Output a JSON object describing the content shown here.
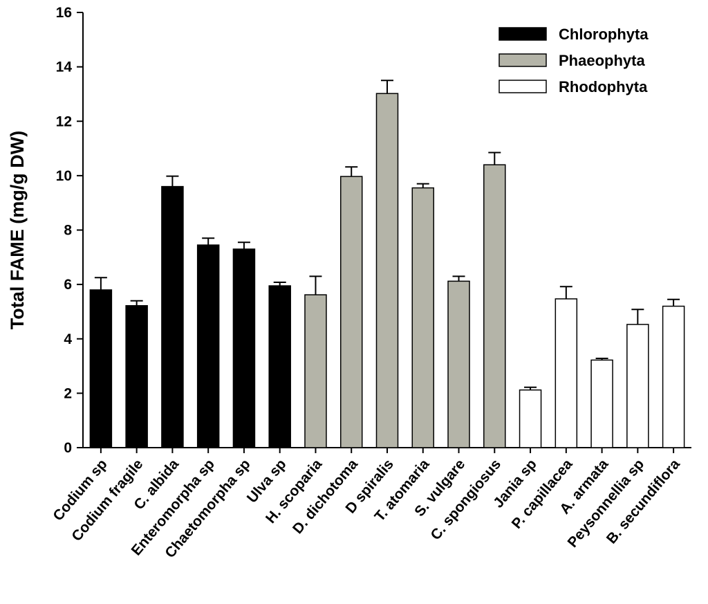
{
  "chart_data": {
    "type": "bar",
    "title": "",
    "xlabel": "",
    "ylabel": "Total FAME (mg/g DW)",
    "ylim": [
      0,
      16
    ],
    "yticks": [
      0,
      2,
      4,
      6,
      8,
      10,
      12,
      14,
      16
    ],
    "categories": [
      "Codium sp",
      "Codium fragile",
      "C. albida",
      "Enteromorpha sp",
      "Chaetomorpha sp",
      "Ulva sp",
      "H. scoparia",
      "D. dichotoma",
      "D spiralis",
      "T. atomaria",
      "S. vulgare",
      "C. spongiosus",
      "Jania sp",
      "P. capillacea",
      "A. armata",
      "Peysonnellia sp",
      "B. secundiflora"
    ],
    "values": [
      5.8,
      5.22,
      9.6,
      7.45,
      7.3,
      5.95,
      5.62,
      9.97,
      13.02,
      9.55,
      6.12,
      10.4,
      2.12,
      5.47,
      3.22,
      4.53,
      5.2
    ],
    "errors": [
      0.45,
      0.18,
      0.38,
      0.25,
      0.25,
      0.13,
      0.68,
      0.35,
      0.48,
      0.15,
      0.18,
      0.45,
      0.1,
      0.45,
      0.06,
      0.55,
      0.25
    ],
    "groups": [
      0,
      0,
      0,
      0,
      0,
      0,
      1,
      1,
      1,
      1,
      1,
      1,
      2,
      2,
      2,
      2,
      2
    ],
    "series": [
      {
        "name": "Chlorophyta",
        "color": "#000000"
      },
      {
        "name": "Phaeophyta",
        "color": "#b4b4a8"
      },
      {
        "name": "Rhodophyta",
        "color": "#ffffff"
      }
    ],
    "legend_position": "top-right",
    "grid": false
  }
}
